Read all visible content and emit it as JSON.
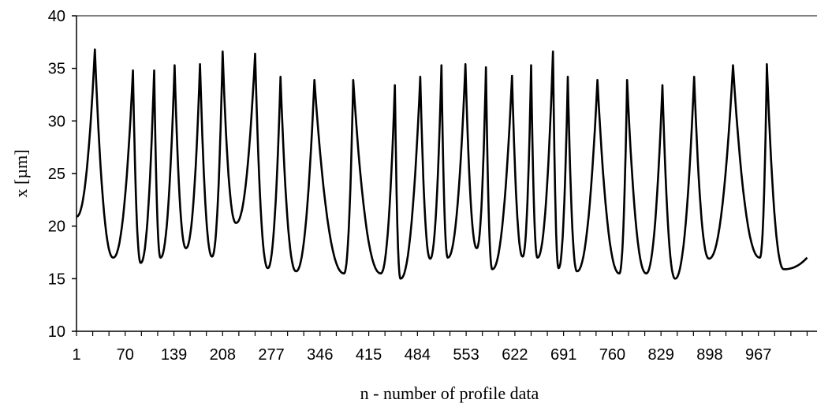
{
  "chart_data": {
    "type": "line",
    "xlabel": "n - number of profile data",
    "ylabel": "x [µm]",
    "ylim": [
      10,
      40
    ],
    "yticks": [
      10,
      15,
      20,
      25,
      30,
      35,
      40
    ],
    "xlim": [
      1,
      1050
    ],
    "xticks": [
      1,
      70,
      139,
      208,
      277,
      346,
      415,
      484,
      553,
      622,
      691,
      760,
      829,
      898,
      967
    ],
    "grid": false,
    "legend": "none",
    "series": [
      {
        "color": "#000000",
        "x": [
          1,
          27,
          53,
          81,
          92,
          111,
          120,
          140,
          156,
          176,
          193,
          208,
          227,
          254,
          272,
          290,
          312,
          338,
          380,
          393,
          432,
          452,
          460,
          488,
          502,
          518,
          527,
          552,
          568,
          581,
          590,
          618,
          633,
          645,
          654,
          676,
          684,
          697,
          710,
          739,
          770,
          781,
          808,
          831,
          849,
          876,
          897,
          931,
          969,
          979,
          1003,
          1036
        ],
        "values": [
          20.9,
          36.8,
          17.0,
          34.8,
          16.5,
          34.8,
          17.0,
          35.3,
          17.9,
          35.4,
          17.1,
          36.6,
          20.3,
          36.4,
          16.0,
          34.2,
          15.7,
          33.9,
          15.5,
          33.9,
          15.5,
          33.4,
          15.0,
          34.2,
          16.9,
          35.3,
          17.0,
          35.4,
          17.9,
          35.1,
          15.9,
          34.3,
          17.1,
          35.3,
          17.0,
          36.6,
          16.0,
          34.2,
          15.7,
          33.9,
          15.5,
          33.9,
          15.5,
          33.4,
          15.0,
          34.2,
          16.9,
          35.3,
          17.0,
          35.4,
          15.9,
          17.0
        ]
      }
    ]
  }
}
